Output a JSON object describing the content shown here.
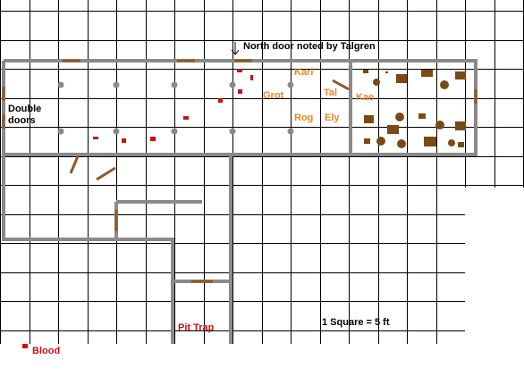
{
  "map": {
    "north_door_note": "North door noted by Talgren",
    "names": [
      "Karl",
      "Grot",
      "Tal",
      "Kae",
      "Rog",
      "Ely"
    ],
    "double_doors": [
      "Double",
      "doors"
    ],
    "pit_trap": "Pit Trap",
    "scale": "1 Square = 5 ft",
    "blood": "Blood"
  }
}
